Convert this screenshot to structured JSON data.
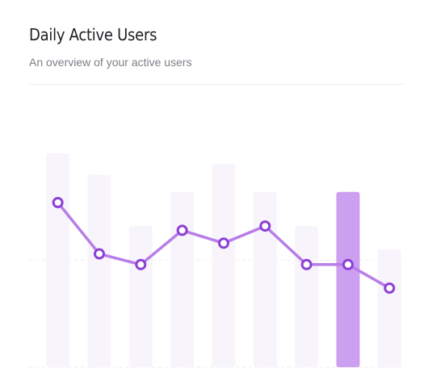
{
  "header": {
    "title": "Daily Active Users",
    "subtitle": "An overview of your active users"
  },
  "colors": {
    "bar": "#f8f4fb",
    "bar_highlight": "#cc9ff0",
    "line": "#b87de8",
    "point_stroke": "#8c3fd6",
    "point_fill": "#ffffff",
    "grid": "#eeeeee"
  },
  "chart_data": {
    "type": "bar",
    "title": "Daily Active Users",
    "subtitle": "An overview of your active users",
    "xlabel": "",
    "ylabel": "",
    "categories": [
      "",
      "",
      "",
      "",
      "",
      "",
      "",
      "",
      ""
    ],
    "ylim": [
      0,
      100
    ],
    "grid": true,
    "legend": "none",
    "highlight_index": 7,
    "series": [
      {
        "type": "bar",
        "values": [
          100,
          90,
          66,
          82,
          95,
          82,
          66,
          82,
          55
        ]
      },
      {
        "type": "line",
        "values": [
          77,
          53,
          48,
          64,
          58,
          66,
          48,
          48,
          37
        ]
      }
    ]
  }
}
